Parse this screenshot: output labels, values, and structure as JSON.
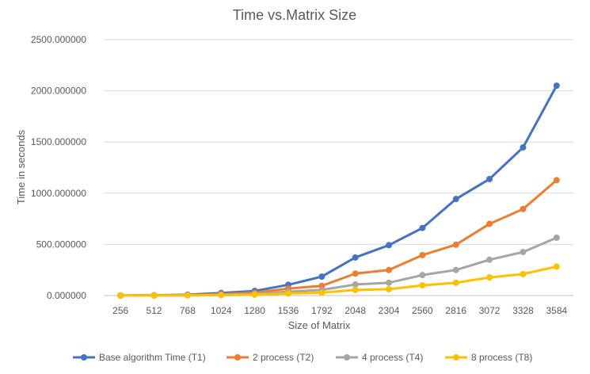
{
  "chart_data": {
    "type": "line",
    "title": "Time vs.Matrix Size",
    "xlabel": "Size of Matrix",
    "ylabel": "Time in seconds",
    "categories": [
      "256",
      "512",
      "768",
      "1024",
      "1280",
      "1536",
      "1792",
      "2048",
      "2304",
      "2560",
      "2816",
      "3072",
      "3328",
      "3584"
    ],
    "ylim": [
      0,
      2500
    ],
    "yticks": [
      "0.000000",
      "500.000000",
      "1000.000000",
      "1500.000000",
      "2000.000000",
      "2500.000000"
    ],
    "grid": true,
    "legend_position": "bottom",
    "series": [
      {
        "name": "Base algorithm Time (T1)",
        "color": "#4472C4",
        "values": [
          1,
          3,
          9,
          25,
          45,
          105,
          185,
          372,
          492,
          660,
          943,
          1138,
          1447,
          2050
        ]
      },
      {
        "name": "2 process (T2)",
        "color": "#ED7D31",
        "values": [
          0.5,
          2,
          5,
          14,
          28,
          68,
          95,
          215,
          250,
          395,
          497,
          700,
          845,
          1127
        ]
      },
      {
        "name": "4 process (T4)",
        "color": "#A5A5A5",
        "values": [
          0.3,
          1,
          3,
          8,
          15,
          38,
          55,
          108,
          125,
          200,
          250,
          350,
          425,
          565
        ]
      },
      {
        "name": "8 process (T8)",
        "color": "#FFC000",
        "values": [
          0.2,
          0.5,
          1.5,
          4,
          8,
          20,
          28,
          55,
          62,
          100,
          125,
          177,
          210,
          283
        ]
      }
    ]
  }
}
